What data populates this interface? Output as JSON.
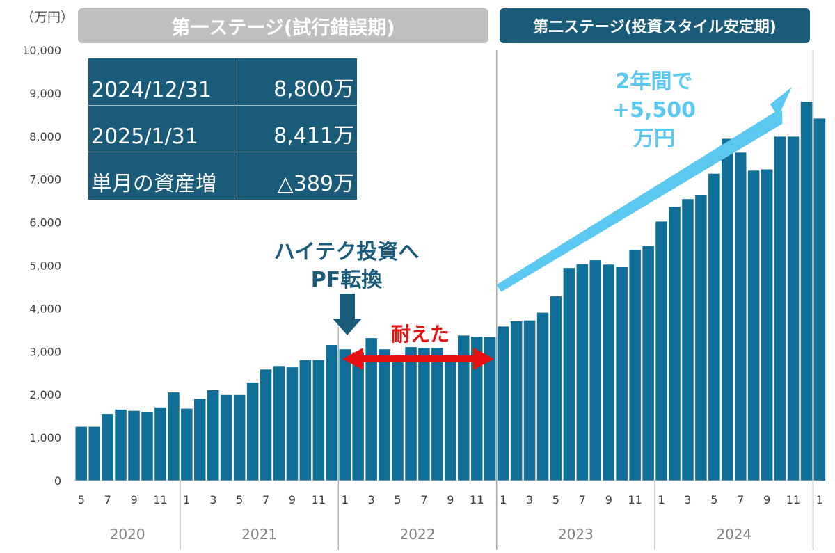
{
  "unit_label": "（万円）",
  "stages": {
    "stage1": "第一ステージ(試行錯誤期)",
    "stage2": "第二ステージ(投資スタイル安定期)"
  },
  "info_table": [
    {
      "label": "2024/12/31",
      "value": "8,800万"
    },
    {
      "label": "2025/1/31",
      "value": "8,411万"
    },
    {
      "label": "単月の資産増",
      "value": "△389万"
    }
  ],
  "annotations": {
    "pf_line1": "ハイテク投資へ",
    "pf_line2": "PF転換",
    "endured": "耐えた",
    "growth_line1": "2年間で",
    "growth_line2": "+5,500",
    "growth_line3": "万円"
  },
  "colors": {
    "bar": "#0f6f97",
    "stage1_bg": "#bfbfbf",
    "stage2_bg": "#1b5b7a",
    "arrow_blue": "#5ac8f0",
    "arrow_red": "#e81010",
    "annotation_dark": "#1b5b7a"
  },
  "chart_data": {
    "type": "bar",
    "ylim": [
      0,
      10000
    ],
    "yticks": [
      0,
      1000,
      2000,
      3000,
      4000,
      5000,
      6000,
      7000,
      8000,
      9000,
      10000
    ],
    "ytick_labels": [
      "0",
      "1,000",
      "2,000",
      "3,000",
      "4,000",
      "5,000",
      "6,000",
      "7,000",
      "8,000",
      "9,000",
      "10,000"
    ],
    "grid": false,
    "months": [
      "2020-05",
      "2020-06",
      "2020-07",
      "2020-08",
      "2020-09",
      "2020-10",
      "2020-11",
      "2020-12",
      "2021-01",
      "2021-02",
      "2021-03",
      "2021-04",
      "2021-05",
      "2021-06",
      "2021-07",
      "2021-08",
      "2021-09",
      "2021-10",
      "2021-11",
      "2021-12",
      "2022-01",
      "2022-02",
      "2022-03",
      "2022-04",
      "2022-05",
      "2022-06",
      "2022-07",
      "2022-08",
      "2022-09",
      "2022-10",
      "2022-11",
      "2022-12",
      "2023-01",
      "2023-02",
      "2023-03",
      "2023-04",
      "2023-05",
      "2023-06",
      "2023-07",
      "2023-08",
      "2023-09",
      "2023-10",
      "2023-11",
      "2023-12",
      "2024-01",
      "2024-02",
      "2024-03",
      "2024-04",
      "2024-05",
      "2024-06",
      "2024-07",
      "2024-08",
      "2024-09",
      "2024-10",
      "2024-11",
      "2024-12",
      "2025-01"
    ],
    "values": [
      1250,
      1250,
      1550,
      1650,
      1620,
      1600,
      1700,
      2050,
      1670,
      1900,
      2100,
      1990,
      1990,
      2280,
      2580,
      2660,
      2630,
      2800,
      2800,
      3150,
      3050,
      2980,
      3310,
      3050,
      2890,
      3100,
      3080,
      3080,
      2880,
      3370,
      3340,
      3330,
      3580,
      3700,
      3720,
      3900,
      4280,
      4940,
      5030,
      5120,
      5020,
      4960,
      5360,
      5450,
      6020,
      6360,
      6540,
      6640,
      7130,
      7940,
      7620,
      7200,
      7230,
      7990,
      7990,
      8800,
      8411
    ],
    "xtick_labels": [
      "5",
      "7",
      "9",
      "11",
      "1",
      "3",
      "5",
      "7",
      "9",
      "11",
      "1",
      "3",
      "5",
      "7",
      "9",
      "11",
      "1",
      "3",
      "5",
      "7",
      "9",
      "11",
      "1",
      "3",
      "5",
      "7",
      "9",
      "11",
      "1"
    ],
    "years": [
      "2020",
      "2021",
      "2022",
      "2023",
      "2024"
    ]
  }
}
